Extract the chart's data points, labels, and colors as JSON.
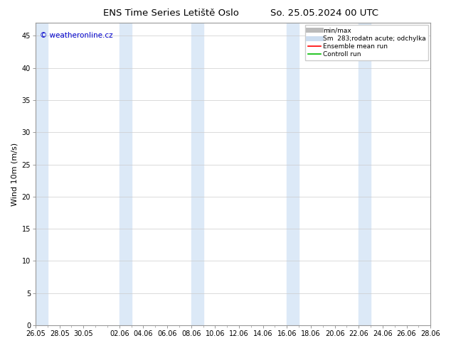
{
  "title_left": "ENS Time Series Letiště Oslo",
  "title_right": "So. 25.05.2024 00 UTC",
  "ylabel": "Wind 10m (m/s)",
  "ylim": [
    0,
    47
  ],
  "yticks": [
    0,
    5,
    10,
    15,
    20,
    25,
    30,
    35,
    40,
    45
  ],
  "xtick_labels": [
    "26.05",
    "28.05",
    "30.05",
    "02.06",
    "04.06",
    "06.06",
    "08.06",
    "10.06",
    "12.06",
    "14.06",
    "16.06",
    "18.06",
    "20.06",
    "22.06",
    "24.06",
    "26.06",
    "28.06"
  ],
  "xtick_offsets": [
    0,
    2,
    4,
    7,
    9,
    11,
    13,
    15,
    17,
    19,
    21,
    23,
    25,
    27,
    29,
    31,
    33
  ],
  "background_color": "#ffffff",
  "plot_bg_color": "#ffffff",
  "shaded_bands": [
    [
      0,
      1
    ],
    [
      7,
      8
    ],
    [
      13,
      14
    ],
    [
      21,
      22
    ],
    [
      27,
      28
    ]
  ],
  "shade_color": "#dce9f7",
  "legend_items": [
    {
      "label": "min/max",
      "color": "#bbbbbb",
      "lw": 5,
      "type": "line"
    },
    {
      "label": "Sm  283;rodatn acute; odchylka",
      "color": "#ccddf0",
      "lw": 5,
      "type": "line"
    },
    {
      "label": "Ensemble mean run",
      "color": "#ff0000",
      "lw": 1.2,
      "type": "line"
    },
    {
      "label": "Controll run",
      "color": "#00bb00",
      "lw": 1.2,
      "type": "line"
    }
  ],
  "watermark_text": "© weatheronline.cz",
  "watermark_color": "#0000cc",
  "watermark_fontsize": 7.5,
  "title_fontsize": 9.5,
  "axis_fontsize": 7,
  "ylabel_fontsize": 8,
  "grid_color": "#cccccc",
  "spine_color": "#999999",
  "total_days": 33
}
